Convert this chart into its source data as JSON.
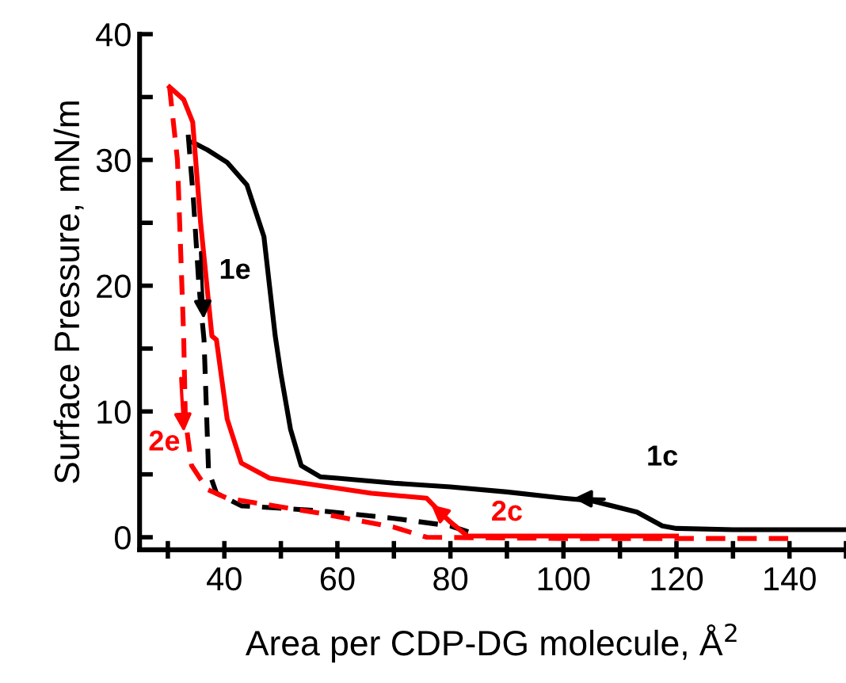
{
  "chart_data": {
    "type": "line",
    "xlabel": "Area per CDP-DG molecule, Å$^{2}$",
    "ylabel": "Surface Pressure, mN/m",
    "xlim": [
      25,
      150
    ],
    "ylim": [
      -1,
      40
    ],
    "xticks": [
      {
        "value": 30,
        "label": null
      },
      40,
      {
        "value": 50,
        "label": null
      },
      60,
      {
        "value": 70,
        "label": null
      },
      80,
      {
        "value": 90,
        "label": null
      },
      100,
      {
        "value": 110,
        "label": null
      },
      120,
      {
        "value": 130,
        "label": null
      },
      140,
      {
        "value": 150,
        "label": null
      }
    ],
    "yticks": [
      0,
      {
        "value": 5,
        "label": null
      },
      10,
      {
        "value": 15,
        "label": null
      },
      20,
      {
        "value": 25,
        "label": null
      },
      30,
      {
        "value": 35,
        "label": null
      },
      40
    ],
    "grid": false,
    "legend": false,
    "marker": "none",
    "series": [
      {
        "color": "#000000",
        "line_style": "solid",
        "x": [
          150,
          130,
          120,
          117.5,
          113,
          105,
          100,
          90,
          80,
          70,
          60,
          57,
          53.6,
          51.7,
          50,
          49,
          47,
          44,
          40.5,
          37,
          34.4
        ],
        "values": [
          0.6,
          0.6,
          0.7,
          0.9,
          2,
          2.9,
          3.1,
          3.6,
          4,
          4.3,
          4.7,
          4.8,
          5.7,
          8.6,
          13,
          16,
          23.9,
          28,
          29.8,
          30.8,
          31.4
        ]
      },
      {
        "color": "#000000",
        "line_style": "dashed",
        "x": [
          33.6,
          34.5,
          35.5,
          36.4,
          37.2,
          38.6,
          43,
          57,
          70,
          80,
          84
        ],
        "values": [
          32,
          27,
          20,
          15.7,
          5.3,
          3.5,
          2.5,
          2.1,
          1.5,
          0.9,
          0.3
        ]
      },
      {
        "color": "#ff0000",
        "line_style": "solid",
        "x": [
          120,
          100,
          83,
          80,
          78.4,
          75.8,
          66,
          48,
          43,
          40.5,
          38.6,
          37.8,
          35.8,
          34.4,
          32.8,
          30.3
        ],
        "values": [
          0.1,
          0.1,
          0.1,
          1.2,
          1.9,
          3.1,
          3.5,
          4.7,
          5.9,
          9.4,
          15.7,
          16,
          25,
          33,
          34.8,
          35.8
        ]
      },
      {
        "color": "#ff0000",
        "line_style": "dashed",
        "x": [
          30.3,
          31.7,
          32.8,
          33.1,
          34.2,
          37,
          40.5,
          57,
          70,
          75.8,
          100,
          140
        ],
        "values": [
          35.8,
          30,
          16,
          9.4,
          5.7,
          3.8,
          3.1,
          1.9,
          0.8,
          0,
          -0.1,
          -0.1
        ]
      }
    ],
    "annotations": [
      "1c",
      "1e",
      "2c",
      "2e"
    ]
  }
}
